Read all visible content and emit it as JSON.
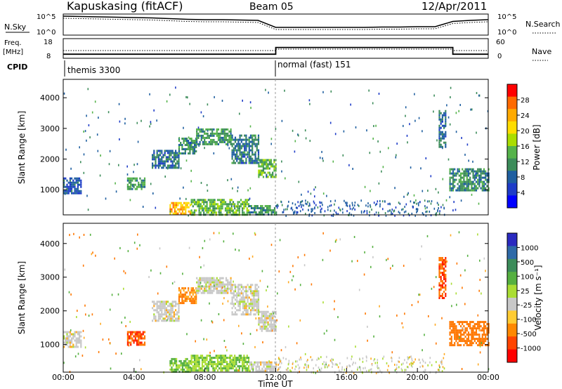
{
  "header": {
    "station": "Kapuskasing (fitACF)",
    "beam": "Beam 05",
    "date": "12/Apr/2011"
  },
  "summary": {
    "nsky_label": "N.Sky",
    "nsky_ticks": [
      "10^5",
      "10^0"
    ],
    "nsearch_label": "N.Search",
    "nsearch_ticks": [
      "10^5",
      "10^0"
    ],
    "freq_label": "Freq.",
    "freq_unit": "[MHz]",
    "freq_ticks": [
      "18",
      "8"
    ],
    "nave_label": "Nave",
    "nave_ticks": [
      "60",
      "0"
    ],
    "cpid_label": "CPID",
    "cpid_segments": [
      {
        "label": "themis 3300",
        "start_hour": 0,
        "end_hour": 12
      },
      {
        "label": "normal (fast) 151",
        "start_hour": 12,
        "end_hour": 24
      }
    ]
  },
  "power_colorbar": {
    "label": "Power [dB]",
    "ticks": [
      "28",
      "24",
      "20",
      "16",
      "12",
      "8",
      "4"
    ],
    "colors": [
      "#ff0000",
      "#ff6a00",
      "#ffaa00",
      "#ffdd00",
      "#aadd00",
      "#55b34a",
      "#3c8c5a",
      "#1f5fa0",
      "#1e3cc8",
      "#0000ff"
    ]
  },
  "velocity_colorbar": {
    "label": "Velocity [m s⁻¹]",
    "ticks": [
      "1000",
      "500",
      "100",
      "25",
      "-25",
      "-100",
      "-500",
      "-1000"
    ],
    "colors": [
      "#2a2ac0",
      "#2e6aa8",
      "#3c8c5a",
      "#55b040",
      "#aadd33",
      "#c8c8c8",
      "#ffcc33",
      "#ff8800",
      "#ff4400",
      "#ff0000"
    ]
  },
  "chart_data": [
    {
      "type": "line",
      "name": "N.Sky / N.Search summary",
      "xlim": [
        0,
        24
      ],
      "series": [
        {
          "name": "N.Sky",
          "x": [
            0,
            1,
            2,
            3,
            4,
            5,
            6,
            7,
            8,
            9,
            10,
            11,
            12,
            13,
            14,
            15,
            16,
            17,
            18,
            19,
            20,
            21,
            22,
            23,
            24
          ],
          "y": [
            5,
            4.9,
            4.8,
            4.7,
            4.6,
            4.5,
            4.3,
            4.1,
            4.0,
            4.0,
            3.9,
            3.8,
            1.8,
            1.8,
            1.8,
            1.8,
            1.8,
            1.8,
            1.9,
            1.9,
            2.0,
            2.0,
            3.5,
            3.8,
            4.0
          ]
        }
      ]
    },
    {
      "type": "line",
      "name": "Frequency / Nave",
      "xlim": [
        0,
        24
      ],
      "series": [
        {
          "name": "Freq.",
          "x": [
            0,
            12,
            12,
            22,
            22,
            24
          ],
          "y": [
            10,
            10,
            14,
            14,
            10,
            10
          ]
        },
        {
          "name": "Nave",
          "x": [
            0,
            12,
            12,
            22,
            22,
            24
          ],
          "y": [
            25,
            25,
            30,
            30,
            25,
            25
          ]
        }
      ]
    },
    {
      "type": "heatmap",
      "name": "Power",
      "xlabel": "",
      "ylabel": "Slant Range [km]",
      "xlim": [
        0,
        24
      ],
      "ylim": [
        180,
        4600
      ],
      "yticks": [
        1000,
        2000,
        3000,
        4000
      ],
      "echo_regions": [
        {
          "hour_start": 0.0,
          "hour_end": 1.0,
          "range_low": 900,
          "range_high": 1400,
          "power_db": 6
        },
        {
          "hour_start": 3.6,
          "hour_end": 4.6,
          "range_low": 1000,
          "range_high": 1400,
          "power_db": 12
        },
        {
          "hour_start": 5.0,
          "hour_end": 6.5,
          "range_low": 1700,
          "range_high": 2300,
          "power_db": 8
        },
        {
          "hour_start": 6.5,
          "hour_end": 7.5,
          "range_low": 2200,
          "range_high": 2700,
          "power_db": 10
        },
        {
          "hour_start": 7.5,
          "hour_end": 9.5,
          "range_low": 2500,
          "range_high": 3000,
          "power_db": 12
        },
        {
          "hour_start": 9.5,
          "hour_end": 11.0,
          "range_low": 1900,
          "range_high": 2800,
          "power_db": 9
        },
        {
          "hour_start": 11.0,
          "hour_end": 12.0,
          "range_low": 1400,
          "range_high": 2000,
          "power_db": 14
        },
        {
          "hour_start": 6.0,
          "hour_end": 7.2,
          "range_low": 200,
          "range_high": 600,
          "power_db": 24
        },
        {
          "hour_start": 7.2,
          "hour_end": 10.5,
          "range_low": 200,
          "range_high": 700,
          "power_db": 14
        },
        {
          "hour_start": 10.5,
          "hour_end": 12.0,
          "range_low": 200,
          "range_high": 500,
          "power_db": 10
        },
        {
          "hour_start": 21.2,
          "hour_end": 21.6,
          "range_low": 2400,
          "range_high": 3600,
          "power_db": 8
        },
        {
          "hour_start": 21.8,
          "hour_end": 24.0,
          "range_low": 1000,
          "range_high": 1700,
          "power_db": 10
        }
      ]
    },
    {
      "type": "heatmap",
      "name": "Velocity",
      "xlabel": "Time UT",
      "ylabel": "Slant Range [km]",
      "xlim": [
        0,
        24
      ],
      "ylim": [
        180,
        4600
      ],
      "yticks": [
        1000,
        2000,
        3000,
        4000
      ],
      "xticks": [
        "00:00",
        "04:00",
        "08:00",
        "12:00",
        "16:00",
        "20:00",
        "00:00"
      ],
      "echo_regions": [
        {
          "hour_start": 0.0,
          "hour_end": 1.0,
          "range_low": 900,
          "range_high": 1400,
          "velocity": 0
        },
        {
          "hour_start": 3.6,
          "hour_end": 4.6,
          "range_low": 1000,
          "range_high": 1400,
          "velocity": -500
        },
        {
          "hour_start": 5.0,
          "hour_end": 6.5,
          "range_low": 1700,
          "range_high": 2300,
          "velocity": 0
        },
        {
          "hour_start": 6.5,
          "hour_end": 7.5,
          "range_low": 2200,
          "range_high": 2700,
          "velocity": -100
        },
        {
          "hour_start": 7.5,
          "hour_end": 9.5,
          "range_low": 2500,
          "range_high": 3000,
          "velocity": 0
        },
        {
          "hour_start": 9.5,
          "hour_end": 11.0,
          "range_low": 1900,
          "range_high": 2800,
          "velocity": 0
        },
        {
          "hour_start": 11.0,
          "hour_end": 12.0,
          "range_low": 1400,
          "range_high": 2000,
          "velocity": 0
        },
        {
          "hour_start": 6.0,
          "hour_end": 7.2,
          "range_low": 200,
          "range_high": 600,
          "velocity": 100
        },
        {
          "hour_start": 7.2,
          "hour_end": 10.5,
          "range_low": 200,
          "range_high": 700,
          "velocity": 100
        },
        {
          "hour_start": 10.5,
          "hour_end": 12.0,
          "range_low": 200,
          "range_high": 500,
          "velocity": 0
        },
        {
          "hour_start": 21.2,
          "hour_end": 21.6,
          "range_low": 2400,
          "range_high": 3600,
          "velocity": -500
        },
        {
          "hour_start": 21.8,
          "hour_end": 24.0,
          "range_low": 1000,
          "range_high": 1700,
          "velocity": -200
        }
      ]
    }
  ]
}
